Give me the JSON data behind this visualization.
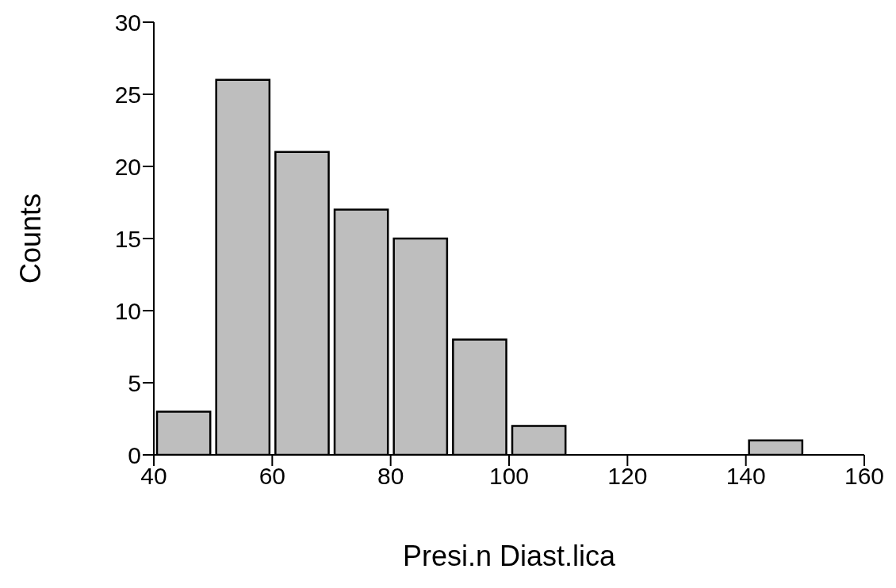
{
  "chart_data": {
    "type": "histogram",
    "xlabel": "Presi.n Diast.lica",
    "ylabel": "Counts",
    "bins": [
      40,
      50,
      60,
      70,
      80,
      90,
      100,
      110,
      120,
      130,
      140,
      150
    ],
    "values": [
      3,
      26,
      21,
      17,
      15,
      8,
      2,
      0,
      0,
      0,
      1
    ],
    "color": "#bebebe",
    "xlim": [
      40,
      160
    ],
    "xticks": [
      40,
      60,
      80,
      100,
      120,
      140,
      160
    ],
    "ylim": [
      0,
      30
    ],
    "yticks": [
      0,
      5,
      10,
      15,
      20,
      25,
      30
    ],
    "grid": false
  }
}
